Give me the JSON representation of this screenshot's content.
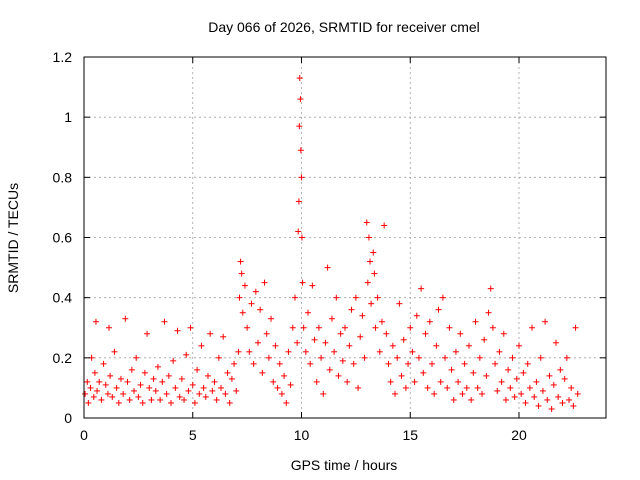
{
  "chart_data": {
    "type": "scatter",
    "title": "Day 066 of 2026, SRMTID for receiver cmel",
    "xlabel": "GPS time / hours",
    "ylabel": "SRMTID / TECUs",
    "xlim": [
      0,
      24
    ],
    "ylim": [
      0,
      1.2
    ],
    "xticks": [
      0,
      5,
      10,
      15,
      20
    ],
    "xtick_labels": [
      "0",
      "5",
      "10",
      "15",
      "20"
    ],
    "yticks": [
      0,
      0.2,
      0.4,
      0.6,
      0.8,
      1.0,
      1.2
    ],
    "ytick_labels": [
      "0",
      "0.2",
      "0.4",
      "0.6",
      "0.8",
      "1",
      "1.2"
    ],
    "grid": true,
    "marker": "plus",
    "series": [
      {
        "name": "SRMTID",
        "color": "#ff0000",
        "points": [
          [
            0.05,
            0.08
          ],
          [
            0.15,
            0.12
          ],
          [
            0.2,
            0.05
          ],
          [
            0.3,
            0.1
          ],
          [
            0.35,
            0.2
          ],
          [
            0.45,
            0.07
          ],
          [
            0.5,
            0.15
          ],
          [
            0.55,
            0.32
          ],
          [
            0.6,
            0.09
          ],
          [
            0.7,
            0.12
          ],
          [
            0.8,
            0.06
          ],
          [
            0.9,
            0.18
          ],
          [
            1.0,
            0.11
          ],
          [
            1.1,
            0.08
          ],
          [
            1.15,
            0.3
          ],
          [
            1.2,
            0.14
          ],
          [
            1.3,
            0.07
          ],
          [
            1.4,
            0.22
          ],
          [
            1.5,
            0.1
          ],
          [
            1.6,
            0.05
          ],
          [
            1.7,
            0.13
          ],
          [
            1.8,
            0.08
          ],
          [
            1.9,
            0.33
          ],
          [
            2.0,
            0.12
          ],
          [
            2.1,
            0.06
          ],
          [
            2.2,
            0.16
          ],
          [
            2.3,
            0.09
          ],
          [
            2.4,
            0.2
          ],
          [
            2.5,
            0.07
          ],
          [
            2.6,
            0.11
          ],
          [
            2.7,
            0.05
          ],
          [
            2.8,
            0.15
          ],
          [
            2.9,
            0.28
          ],
          [
            3.0,
            0.1
          ],
          [
            3.1,
            0.06
          ],
          [
            3.2,
            0.13
          ],
          [
            3.3,
            0.09
          ],
          [
            3.4,
            0.17
          ],
          [
            3.5,
            0.06
          ],
          [
            3.6,
            0.12
          ],
          [
            3.7,
            0.32
          ],
          [
            3.8,
            0.08
          ],
          [
            3.9,
            0.14
          ],
          [
            4.0,
            0.05
          ],
          [
            4.1,
            0.19
          ],
          [
            4.2,
            0.1
          ],
          [
            4.3,
            0.29
          ],
          [
            4.4,
            0.07
          ],
          [
            4.5,
            0.13
          ],
          [
            4.6,
            0.06
          ],
          [
            4.7,
            0.21
          ],
          [
            4.8,
            0.09
          ],
          [
            4.9,
            0.3
          ],
          [
            5.0,
            0.11
          ],
          [
            5.1,
            0.05
          ],
          [
            5.2,
            0.16
          ],
          [
            5.3,
            0.08
          ],
          [
            5.4,
            0.24
          ],
          [
            5.5,
            0.1
          ],
          [
            5.6,
            0.07
          ],
          [
            5.7,
            0.14
          ],
          [
            5.8,
            0.28
          ],
          [
            5.9,
            0.09
          ],
          [
            6.0,
            0.12
          ],
          [
            6.1,
            0.06
          ],
          [
            6.2,
            0.2
          ],
          [
            6.3,
            0.1
          ],
          [
            6.4,
            0.27
          ],
          [
            6.5,
            0.08
          ],
          [
            6.6,
            0.15
          ],
          [
            6.7,
            0.05
          ],
          [
            6.8,
            0.13
          ],
          [
            6.9,
            0.18
          ],
          [
            7.0,
            0.09
          ],
          [
            7.1,
            0.22
          ],
          [
            7.15,
            0.4
          ],
          [
            7.2,
            0.52
          ],
          [
            7.25,
            0.48
          ],
          [
            7.3,
            0.35
          ],
          [
            7.4,
            0.44
          ],
          [
            7.5,
            0.3
          ],
          [
            7.6,
            0.22
          ],
          [
            7.7,
            0.38
          ],
          [
            7.8,
            0.18
          ],
          [
            7.9,
            0.42
          ],
          [
            8.0,
            0.25
          ],
          [
            8.1,
            0.36
          ],
          [
            8.2,
            0.15
          ],
          [
            8.3,
            0.45
          ],
          [
            8.4,
            0.28
          ],
          [
            8.5,
            0.2
          ],
          [
            8.6,
            0.33
          ],
          [
            8.7,
            0.12
          ],
          [
            8.8,
            0.24
          ],
          [
            8.9,
            0.1
          ],
          [
            9.0,
            0.18
          ],
          [
            9.1,
            0.08
          ],
          [
            9.2,
            0.14
          ],
          [
            9.3,
            0.05
          ],
          [
            9.4,
            0.22
          ],
          [
            9.5,
            0.11
          ],
          [
            9.6,
            0.3
          ],
          [
            9.7,
            0.4
          ],
          [
            9.8,
            0.25
          ],
          [
            9.85,
            0.62
          ],
          [
            9.88,
            0.72
          ],
          [
            9.9,
            0.97
          ],
          [
            9.92,
            1.13
          ],
          [
            9.95,
            1.06
          ],
          [
            9.97,
            0.89
          ],
          [
            10.0,
            0.8
          ],
          [
            10.02,
            0.6
          ],
          [
            10.05,
            0.45
          ],
          [
            10.1,
            0.3
          ],
          [
            10.2,
            0.22
          ],
          [
            10.3,
            0.35
          ],
          [
            10.4,
            0.18
          ],
          [
            10.5,
            0.44
          ],
          [
            10.6,
            0.26
          ],
          [
            10.7,
            0.12
          ],
          [
            10.8,
            0.3
          ],
          [
            10.9,
            0.2
          ],
          [
            11.0,
            0.08
          ],
          [
            11.1,
            0.25
          ],
          [
            11.2,
            0.5
          ],
          [
            11.3,
            0.16
          ],
          [
            11.4,
            0.33
          ],
          [
            11.5,
            0.22
          ],
          [
            11.6,
            0.4
          ],
          [
            11.7,
            0.14
          ],
          [
            11.8,
            0.28
          ],
          [
            11.9,
            0.19
          ],
          [
            12.0,
            0.3
          ],
          [
            12.1,
            0.12
          ],
          [
            12.2,
            0.24
          ],
          [
            12.3,
            0.36
          ],
          [
            12.4,
            0.18
          ],
          [
            12.5,
            0.4
          ],
          [
            12.6,
            0.1
          ],
          [
            12.7,
            0.27
          ],
          [
            12.8,
            0.34
          ],
          [
            12.9,
            0.2
          ],
          [
            13.0,
            0.65
          ],
          [
            13.05,
            0.45
          ],
          [
            13.1,
            0.6
          ],
          [
            13.15,
            0.52
          ],
          [
            13.2,
            0.38
          ],
          [
            13.3,
            0.55
          ],
          [
            13.35,
            0.48
          ],
          [
            13.4,
            0.3
          ],
          [
            13.5,
            0.4
          ],
          [
            13.6,
            0.22
          ],
          [
            13.7,
            0.32
          ],
          [
            13.8,
            0.64
          ],
          [
            13.9,
            0.28
          ],
          [
            14.0,
            0.18
          ],
          [
            14.1,
            0.12
          ],
          [
            14.2,
            0.24
          ],
          [
            14.3,
            0.08
          ],
          [
            14.4,
            0.2
          ],
          [
            14.5,
            0.38
          ],
          [
            14.6,
            0.14
          ],
          [
            14.7,
            0.26
          ],
          [
            14.8,
            0.1
          ],
          [
            14.9,
            0.18
          ],
          [
            15.0,
            0.3
          ],
          [
            15.1,
            0.22
          ],
          [
            15.2,
            0.12
          ],
          [
            15.3,
            0.34
          ],
          [
            15.4,
            0.2
          ],
          [
            15.5,
            0.43
          ],
          [
            15.6,
            0.15
          ],
          [
            15.7,
            0.28
          ],
          [
            15.8,
            0.1
          ],
          [
            15.9,
            0.32
          ],
          [
            16.0,
            0.18
          ],
          [
            16.1,
            0.08
          ],
          [
            16.2,
            0.24
          ],
          [
            16.3,
            0.36
          ],
          [
            16.4,
            0.12
          ],
          [
            16.5,
            0.4
          ],
          [
            16.6,
            0.2
          ],
          [
            16.7,
            0.1
          ],
          [
            16.8,
            0.3
          ],
          [
            16.9,
            0.16
          ],
          [
            17.0,
            0.06
          ],
          [
            17.1,
            0.22
          ],
          [
            17.2,
            0.12
          ],
          [
            17.3,
            0.28
          ],
          [
            17.4,
            0.08
          ],
          [
            17.5,
            0.18
          ],
          [
            17.6,
            0.1
          ],
          [
            17.7,
            0.24
          ],
          [
            17.8,
            0.06
          ],
          [
            17.9,
            0.15
          ],
          [
            18.0,
            0.32
          ],
          [
            18.1,
            0.1
          ],
          [
            18.2,
            0.2
          ],
          [
            18.3,
            0.08
          ],
          [
            18.4,
            0.26
          ],
          [
            18.5,
            0.14
          ],
          [
            18.6,
            0.35
          ],
          [
            18.7,
            0.43
          ],
          [
            18.8,
            0.3
          ],
          [
            18.9,
            0.18
          ],
          [
            19.0,
            0.09
          ],
          [
            19.1,
            0.22
          ],
          [
            19.2,
            0.12
          ],
          [
            19.3,
            0.28
          ],
          [
            19.4,
            0.06
          ],
          [
            19.5,
            0.16
          ],
          [
            19.6,
            0.1
          ],
          [
            19.7,
            0.2
          ],
          [
            19.8,
            0.07
          ],
          [
            19.9,
            0.13
          ],
          [
            20.0,
            0.24
          ],
          [
            20.1,
            0.08
          ],
          [
            20.2,
            0.15
          ],
          [
            20.3,
            0.05
          ],
          [
            20.4,
            0.18
          ],
          [
            20.5,
            0.1
          ],
          [
            20.6,
            0.3
          ],
          [
            20.7,
            0.07
          ],
          [
            20.8,
            0.12
          ],
          [
            20.9,
            0.04
          ],
          [
            21.0,
            0.2
          ],
          [
            21.1,
            0.09
          ],
          [
            21.2,
            0.32
          ],
          [
            21.3,
            0.06
          ],
          [
            21.4,
            0.14
          ],
          [
            21.5,
            0.03
          ],
          [
            21.6,
            0.11
          ],
          [
            21.7,
            0.25
          ],
          [
            21.8,
            0.07
          ],
          [
            21.9,
            0.16
          ],
          [
            22.0,
            0.05
          ],
          [
            22.1,
            0.13
          ],
          [
            22.2,
            0.2
          ],
          [
            22.3,
            0.06
          ],
          [
            22.4,
            0.1
          ],
          [
            22.5,
            0.04
          ],
          [
            22.6,
            0.3
          ],
          [
            22.7,
            0.08
          ]
        ]
      }
    ]
  }
}
